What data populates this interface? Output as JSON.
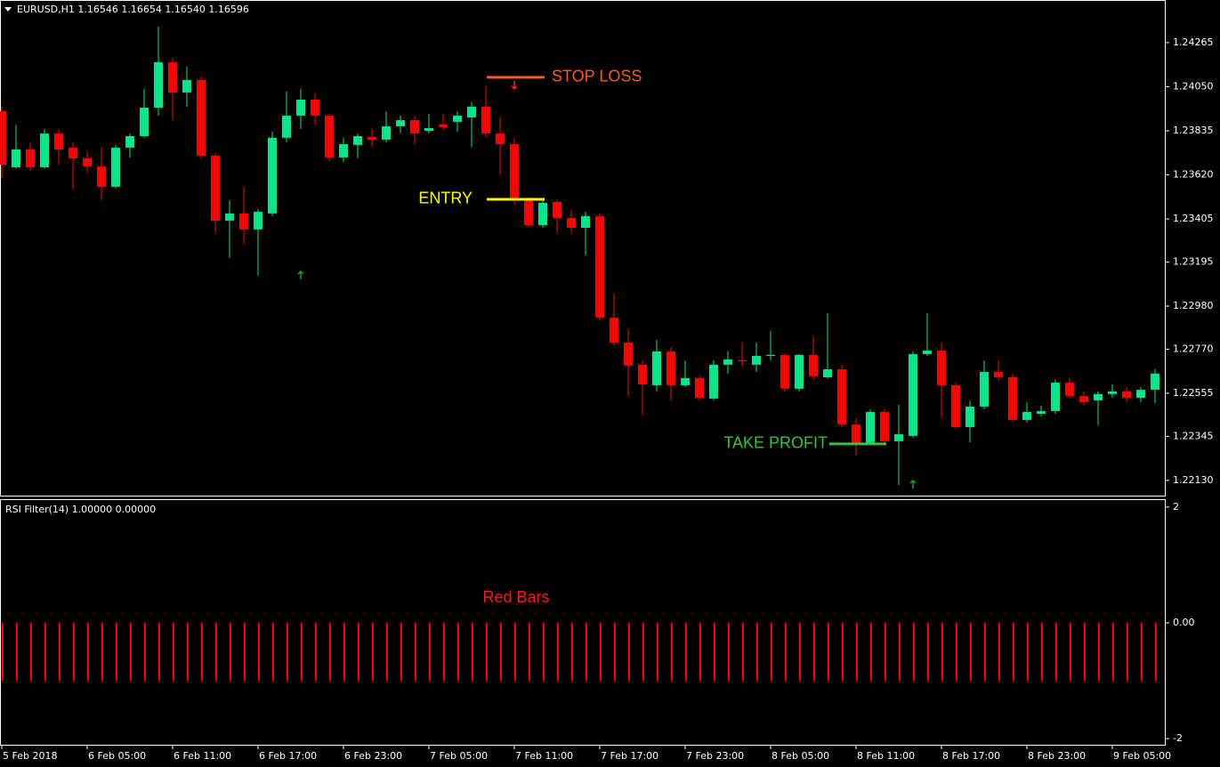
{
  "chart_data": [
    {
      "type": "candlestick",
      "title": "EURUSD,H1  1.16546 1.16654 1.16540 1.16596",
      "categories": [
        "5 Feb 2018",
        null,
        null,
        null,
        null,
        null,
        "6 Feb 05:00",
        null,
        null,
        null,
        null,
        null,
        "6 Feb 11:00",
        null,
        null,
        null,
        null,
        null,
        "6 Feb 17:00",
        null,
        null,
        null,
        null,
        null,
        "6 Feb 23:00",
        null,
        null,
        null,
        null,
        null,
        "7 Feb 05:00",
        null,
        null,
        null,
        null,
        null,
        "7 Feb 11:00",
        null,
        null,
        null,
        null,
        null,
        "7 Feb 17:00",
        null,
        null,
        null,
        null,
        null,
        "7 Feb 23:00",
        null,
        null,
        null,
        null,
        null,
        "8 Feb 05:00",
        null,
        null,
        null,
        null,
        null,
        "8 Feb 11:00",
        null,
        null,
        null,
        null,
        null,
        "8 Feb 17:00",
        null,
        null,
        null,
        null,
        null,
        "8 Feb 23:00",
        null,
        null,
        null,
        null,
        null,
        "9 Feb 05:00",
        null,
        null,
        null
      ],
      "open": [
        1.23931,
        1.23657,
        1.23744,
        1.23657,
        1.23822,
        1.23753,
        1.23701,
        1.23662,
        1.23562,
        1.23753,
        1.23809,
        1.23948,
        1.2417,
        1.24022,
        1.24083,
        1.23714,
        1.23397,
        1.23432,
        1.23354,
        1.23432,
        1.23801,
        1.23909,
        1.23987,
        1.23909,
        1.23705,
        1.23766,
        1.23805,
        1.23792,
        1.23857,
        1.23887,
        1.23835,
        1.23866,
        1.23879,
        1.239,
        1.23953,
        1.23822,
        1.2377,
        1.23497,
        1.23375,
        1.23488,
        1.2341,
        1.23362,
        1.23419,
        1.22924,
        1.22802,
        1.22694,
        1.22594,
        1.22759,
        1.22594,
        1.22629,
        1.22529,
        1.22694,
        1.22716,
        1.22694,
        1.22737,
        1.22742,
        1.22577,
        1.22742,
        1.22633,
        1.22672,
        1.22403,
        1.22312,
        1.22464,
        1.22321,
        1.22347,
        1.22746,
        1.22763,
        1.22594,
        1.2239,
        1.2249,
        1.22659,
        1.22633,
        1.22425,
        1.22455,
        1.22468,
        1.22607,
        1.22542,
        1.2252,
        1.22551,
        1.22564,
        1.22533,
        1.22572
      ],
      "high": [
        1.23953,
        1.23866,
        1.23779,
        1.23844,
        1.23844,
        1.23779,
        1.23736,
        1.23757,
        1.23766,
        1.23822,
        1.24039,
        1.24343,
        1.24191,
        1.24148,
        1.24104,
        1.23727,
        1.23497,
        1.23562,
        1.23453,
        1.23831,
        1.24026,
        1.24039,
        1.24018,
        1.23918,
        1.23801,
        1.23822,
        1.23844,
        1.23931,
        1.23909,
        1.23909,
        1.23918,
        1.23918,
        1.23931,
        1.23974,
        1.24052,
        1.239,
        1.23801,
        1.2351,
        1.23501,
        1.23497,
        1.23449,
        1.2344,
        1.23432,
        1.23041,
        1.22868,
        1.22716,
        1.22815,
        1.22781,
        1.22716,
        1.22642,
        1.22716,
        1.22759,
        1.22802,
        1.22802,
        1.22859,
        1.2275,
        1.22746,
        1.22833,
        1.22946,
        1.22694,
        1.22434,
        1.22477,
        1.22477,
        1.22499,
        1.22759,
        1.22946,
        1.22802,
        1.22607,
        1.2252,
        1.22716,
        1.22716,
        1.22651,
        1.22512,
        1.22494,
        1.2262,
        1.22629,
        1.22564,
        1.22564,
        1.22598,
        1.22585,
        1.22585,
        1.22672
      ],
      "low": [
        1.23605,
        1.23649,
        1.2364,
        1.23649,
        1.2367,
        1.23549,
        1.23627,
        1.23497,
        1.23553,
        1.23705,
        1.23801,
        1.23909,
        1.23887,
        1.23953,
        1.23701,
        1.23336,
        1.23215,
        1.2328,
        1.23128,
        1.23419,
        1.23779,
        1.23844,
        1.23866,
        1.23683,
        1.23683,
        1.23701,
        1.23757,
        1.23779,
        1.23822,
        1.2377,
        1.23822,
        1.23835,
        1.23831,
        1.23757,
        1.23801,
        1.23623,
        1.23475,
        1.23367,
        1.23362,
        1.23336,
        1.23336,
        1.23228,
        1.22911,
        1.22789,
        1.22542,
        1.22447,
        1.22564,
        1.2252,
        1.22585,
        1.2252,
        1.2252,
        1.22651,
        1.22685,
        1.22659,
        1.22716,
        1.22564,
        1.22564,
        1.2262,
        1.22625,
        1.2239,
        1.22251,
        1.22303,
        1.22303,
        1.22108,
        1.22338,
        1.22737,
        1.22434,
        1.22381,
        1.22316,
        1.22477,
        1.22616,
        1.22416,
        1.22412,
        1.22442,
        1.22455,
        1.22533,
        1.22499,
        1.22399,
        1.22533,
        1.22512,
        1.22512,
        1.22507
      ],
      "close": [
        1.2367,
        1.23744,
        1.23657,
        1.23822,
        1.23744,
        1.23701,
        1.23662,
        1.23562,
        1.23753,
        1.23809,
        1.23948,
        1.2417,
        1.24022,
        1.24083,
        1.23714,
        1.23397,
        1.23432,
        1.23354,
        1.2344,
        1.23801,
        1.23909,
        1.23987,
        1.23909,
        1.23705,
        1.2377,
        1.23809,
        1.23792,
        1.23857,
        1.23887,
        1.23822,
        1.23848,
        1.23853,
        1.23909,
        1.23953,
        1.23822,
        1.2377,
        1.23497,
        1.23375,
        1.23484,
        1.2341,
        1.23362,
        1.23419,
        1.22924,
        1.22802,
        1.2269,
        1.22598,
        1.22759,
        1.22594,
        1.22629,
        1.22533,
        1.22694,
        1.2272,
        1.22711,
        1.22737,
        1.22742,
        1.22577,
        1.22742,
        1.22638,
        1.22672,
        1.22403,
        1.22312,
        1.22464,
        1.22321,
        1.22355,
        1.22746,
        1.22763,
        1.22594,
        1.2239,
        1.2249,
        1.22659,
        1.22633,
        1.22425,
        1.22464,
        1.22468,
        1.22607,
        1.22542,
        1.22512,
        1.22551,
        1.22564,
        1.22533,
        1.22572,
        1.22651
      ],
      "up_color": "#00e589",
      "down_color": "#ff0000",
      "ylim": [
        1.2206,
        1.2446
      ],
      "yticks": [
        1.24265,
        {
          "value": 1.2405,
          "label": "1.24050"
        },
        1.23835,
        {
          "value": 1.2362,
          "label": "1.23620"
        },
        1.23405,
        1.23195,
        {
          "value": 1.2298,
          "label": "1.22980"
        },
        {
          "value": 1.2277,
          "label": "1.22770"
        },
        1.22555,
        1.22345,
        {
          "value": 1.2213,
          "label": "1.22130"
        }
      ],
      "annotations": [
        {
          "text": "STOP LOSS",
          "value": 1.24096,
          "color": "#ff5a1a"
        },
        {
          "text": "ENTRY",
          "value": 1.23501,
          "color": "#ffff00"
        },
        {
          "text": "TAKE PROFIT",
          "value": 1.22308,
          "color": "#3cc13c"
        }
      ],
      "buy_signals": [
        null,
        null,
        null,
        null,
        null,
        null,
        null,
        null,
        null,
        null,
        null,
        null,
        null,
        null,
        null,
        null,
        null,
        null,
        null,
        null,
        null,
        1.23128,
        null,
        null,
        null,
        null,
        null,
        null,
        null,
        null,
        null,
        null,
        null,
        null,
        null,
        null,
        null,
        null,
        null,
        null,
        null,
        null,
        null,
        null,
        null,
        null,
        null,
        null,
        null,
        null,
        null,
        null,
        null,
        null,
        null,
        null,
        null,
        null,
        null,
        null,
        null,
        null,
        null,
        null,
        1.22108,
        null,
        null,
        null,
        null,
        null,
        null,
        null,
        null,
        null,
        null,
        null,
        null,
        null,
        null,
        null,
        null,
        null
      ],
      "buy_color": "#1f9a1f",
      "sell_signals": [
        null,
        null,
        null,
        null,
        null,
        null,
        null,
        null,
        null,
        null,
        null,
        null,
        null,
        null,
        null,
        null,
        null,
        null,
        null,
        null,
        null,
        null,
        null,
        null,
        null,
        null,
        null,
        null,
        null,
        null,
        null,
        null,
        null,
        null,
        null,
        null,
        1.24057,
        null,
        null,
        null,
        null,
        null,
        null,
        null,
        null,
        null,
        null,
        null,
        null,
        null,
        null,
        null,
        null,
        null,
        null,
        null,
        null,
        null,
        null,
        null,
        null,
        null,
        null,
        null,
        null,
        null,
        null,
        null,
        null,
        null,
        null,
        null,
        null,
        null,
        null,
        null,
        null,
        null,
        null,
        null,
        null,
        null
      ],
      "sell_color": "#ff2a00"
    },
    {
      "type": "bar",
      "title": "RSI Filter(14) 1.00000 0.00000",
      "values": [
        -1,
        -1,
        -1,
        -1,
        -1,
        -1,
        -1,
        -1,
        -1,
        -1,
        -1,
        -1,
        -1,
        -1,
        -1,
        -1,
        -1,
        -1,
        -1,
        -1,
        -1,
        -1,
        -1,
        -1,
        -1,
        -1,
        -1,
        -1,
        -1,
        -1,
        -1,
        -1,
        -1,
        -1,
        -1,
        -1,
        -1,
        -1,
        -1,
        -1,
        -1,
        -1,
        -1,
        -1,
        -1,
        -1,
        -1,
        -1,
        -1,
        -1,
        -1,
        -1,
        -1,
        -1,
        -1,
        -1,
        -1,
        -1,
        -1,
        -1,
        -1,
        -1,
        -1,
        -1,
        -1,
        -1,
        -1,
        -1,
        -1,
        -1,
        -1,
        -1,
        -1,
        -1,
        -1,
        -1,
        -1,
        -1,
        -1,
        -1,
        -1,
        -1
      ],
      "color": "#ff0000",
      "ylim": [
        -2.12,
        2.12
      ],
      "yticks": [
        2,
        {
          "value": 0,
          "label": "0.00"
        },
        -2
      ],
      "annotations": [
        {
          "text": "Red Bars",
          "color": "#ff1a1a"
        }
      ]
    }
  ]
}
